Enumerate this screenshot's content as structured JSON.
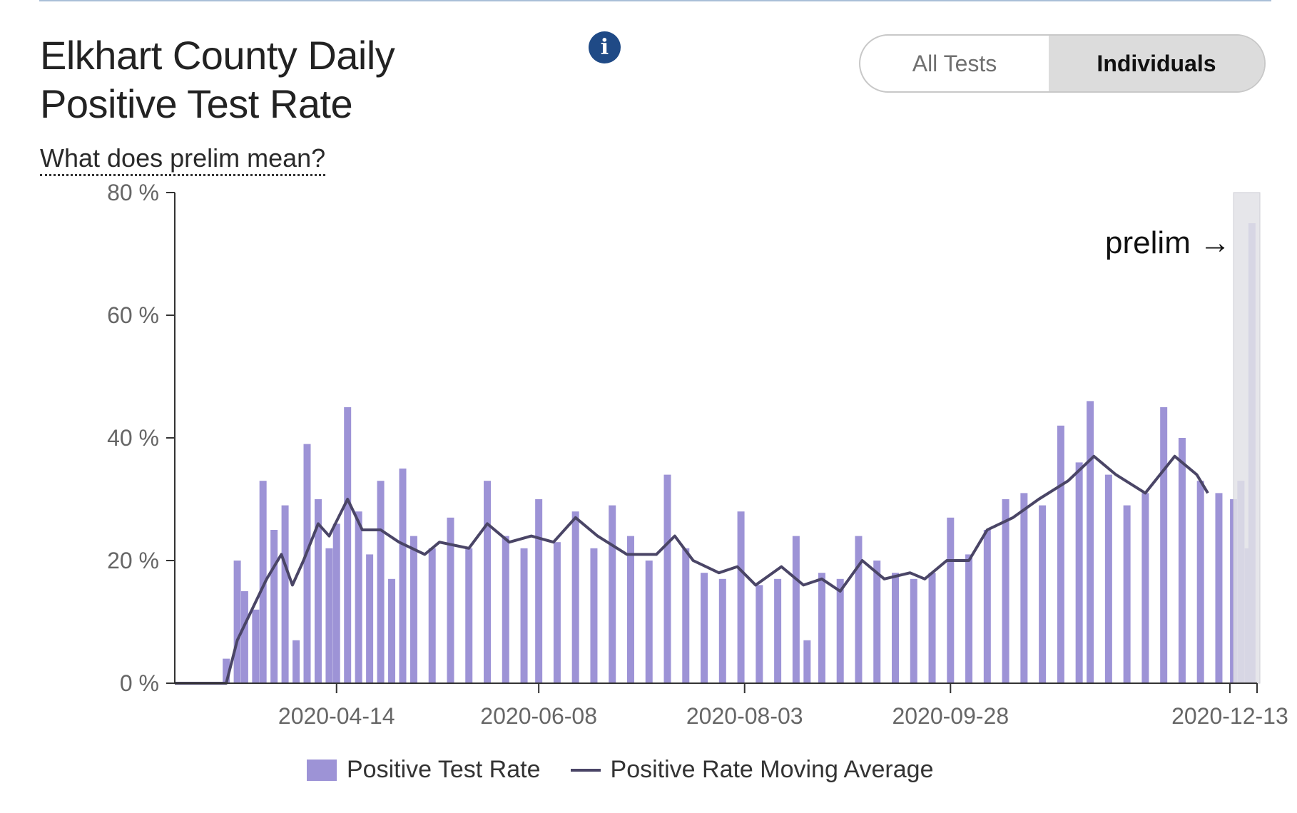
{
  "header": {
    "title_line1": "Elkhart County Daily",
    "title_line2": "Positive Test Rate",
    "info_icon": "info-circle-icon",
    "prelim_link": "What does prelim mean?"
  },
  "toggle": {
    "options": [
      "All Tests",
      "Individuals"
    ],
    "selected": "Individuals"
  },
  "legend": {
    "bar_label": "Positive Test Rate",
    "line_label": "Positive Rate Moving Average"
  },
  "colors": {
    "bar": "#9d93d6",
    "line": "#4a4566",
    "prelim_shade": "#e2e2e6",
    "toggle_selected": "#dcdcdc",
    "info_icon": "#1f4a86"
  },
  "chart_data": {
    "type": "bar",
    "x_start": "2020-03-01",
    "x_end": "2020-12-20",
    "xticks": [
      "2020-04-14",
      "2020-06-08",
      "2020-08-03",
      "2020-09-28",
      "2020-12-13"
    ],
    "yticks": [
      "0 %",
      "20 %",
      "40 %",
      "60 %",
      "80 %"
    ],
    "ylim": [
      0,
      80
    ],
    "annotation": "prelim →",
    "prelim_start": "2020-12-14",
    "series": [
      {
        "name": "Positive Test Rate",
        "kind": "bar",
        "points": [
          [
            "2020-03-15",
            4
          ],
          [
            "2020-03-18",
            20
          ],
          [
            "2020-03-20",
            15
          ],
          [
            "2020-03-23",
            12
          ],
          [
            "2020-03-25",
            33
          ],
          [
            "2020-03-28",
            25
          ],
          [
            "2020-03-31",
            29
          ],
          [
            "2020-04-03",
            7
          ],
          [
            "2020-04-06",
            39
          ],
          [
            "2020-04-09",
            30
          ],
          [
            "2020-04-12",
            22
          ],
          [
            "2020-04-14",
            26
          ],
          [
            "2020-04-17",
            45
          ],
          [
            "2020-04-20",
            28
          ],
          [
            "2020-04-23",
            21
          ],
          [
            "2020-04-26",
            33
          ],
          [
            "2020-04-29",
            17
          ],
          [
            "2020-05-02",
            35
          ],
          [
            "2020-05-05",
            24
          ],
          [
            "2020-05-10",
            22
          ],
          [
            "2020-05-15",
            27
          ],
          [
            "2020-05-20",
            22
          ],
          [
            "2020-05-25",
            33
          ],
          [
            "2020-05-30",
            24
          ],
          [
            "2020-06-04",
            22
          ],
          [
            "2020-06-08",
            30
          ],
          [
            "2020-06-13",
            23
          ],
          [
            "2020-06-18",
            28
          ],
          [
            "2020-06-23",
            22
          ],
          [
            "2020-06-28",
            29
          ],
          [
            "2020-07-03",
            24
          ],
          [
            "2020-07-08",
            20
          ],
          [
            "2020-07-13",
            34
          ],
          [
            "2020-07-18",
            22
          ],
          [
            "2020-07-23",
            18
          ],
          [
            "2020-07-28",
            17
          ],
          [
            "2020-08-02",
            28
          ],
          [
            "2020-08-07",
            16
          ],
          [
            "2020-08-12",
            17
          ],
          [
            "2020-08-17",
            24
          ],
          [
            "2020-08-20",
            7
          ],
          [
            "2020-08-24",
            18
          ],
          [
            "2020-08-29",
            17
          ],
          [
            "2020-09-03",
            24
          ],
          [
            "2020-09-08",
            20
          ],
          [
            "2020-09-13",
            18
          ],
          [
            "2020-09-18",
            17
          ],
          [
            "2020-09-23",
            18
          ],
          [
            "2020-09-28",
            27
          ],
          [
            "2020-10-03",
            21
          ],
          [
            "2020-10-08",
            25
          ],
          [
            "2020-10-13",
            30
          ],
          [
            "2020-10-18",
            31
          ],
          [
            "2020-10-23",
            29
          ],
          [
            "2020-10-28",
            42
          ],
          [
            "2020-11-02",
            36
          ],
          [
            "2020-11-05",
            46
          ],
          [
            "2020-11-10",
            34
          ],
          [
            "2020-11-15",
            29
          ],
          [
            "2020-11-20",
            31
          ],
          [
            "2020-11-25",
            45
          ],
          [
            "2020-11-30",
            40
          ],
          [
            "2020-12-05",
            33
          ],
          [
            "2020-12-10",
            31
          ],
          [
            "2020-12-14",
            30
          ],
          [
            "2020-12-16",
            33
          ],
          [
            "2020-12-18",
            22
          ],
          [
            "2020-12-19",
            75
          ]
        ]
      },
      {
        "name": "Positive Rate Moving Average",
        "kind": "line",
        "points": [
          [
            "2020-03-01",
            0
          ],
          [
            "2020-03-15",
            0
          ],
          [
            "2020-03-18",
            7
          ],
          [
            "2020-03-22",
            12
          ],
          [
            "2020-03-26",
            17
          ],
          [
            "2020-03-30",
            21
          ],
          [
            "2020-04-02",
            16
          ],
          [
            "2020-04-05",
            20
          ],
          [
            "2020-04-09",
            26
          ],
          [
            "2020-04-12",
            24
          ],
          [
            "2020-04-17",
            30
          ],
          [
            "2020-04-21",
            25
          ],
          [
            "2020-04-26",
            25
          ],
          [
            "2020-05-01",
            23
          ],
          [
            "2020-05-08",
            21
          ],
          [
            "2020-05-12",
            23
          ],
          [
            "2020-05-20",
            22
          ],
          [
            "2020-05-25",
            26
          ],
          [
            "2020-05-31",
            23
          ],
          [
            "2020-06-06",
            24
          ],
          [
            "2020-06-12",
            23
          ],
          [
            "2020-06-18",
            27
          ],
          [
            "2020-06-24",
            24
          ],
          [
            "2020-07-02",
            21
          ],
          [
            "2020-07-10",
            21
          ],
          [
            "2020-07-15",
            24
          ],
          [
            "2020-07-20",
            20
          ],
          [
            "2020-07-27",
            18
          ],
          [
            "2020-08-01",
            19
          ],
          [
            "2020-08-06",
            16
          ],
          [
            "2020-08-13",
            19
          ],
          [
            "2020-08-19",
            16
          ],
          [
            "2020-08-24",
            17
          ],
          [
            "2020-08-29",
            15
          ],
          [
            "2020-09-04",
            20
          ],
          [
            "2020-09-10",
            17
          ],
          [
            "2020-09-17",
            18
          ],
          [
            "2020-09-21",
            17
          ],
          [
            "2020-09-27",
            20
          ],
          [
            "2020-10-03",
            20
          ],
          [
            "2020-10-08",
            25
          ],
          [
            "2020-10-15",
            27
          ],
          [
            "2020-10-22",
            30
          ],
          [
            "2020-10-30",
            33
          ],
          [
            "2020-11-06",
            37
          ],
          [
            "2020-11-12",
            34
          ],
          [
            "2020-11-20",
            31
          ],
          [
            "2020-11-28",
            37
          ],
          [
            "2020-12-04",
            34
          ],
          [
            "2020-12-07",
            31
          ]
        ]
      }
    ]
  }
}
